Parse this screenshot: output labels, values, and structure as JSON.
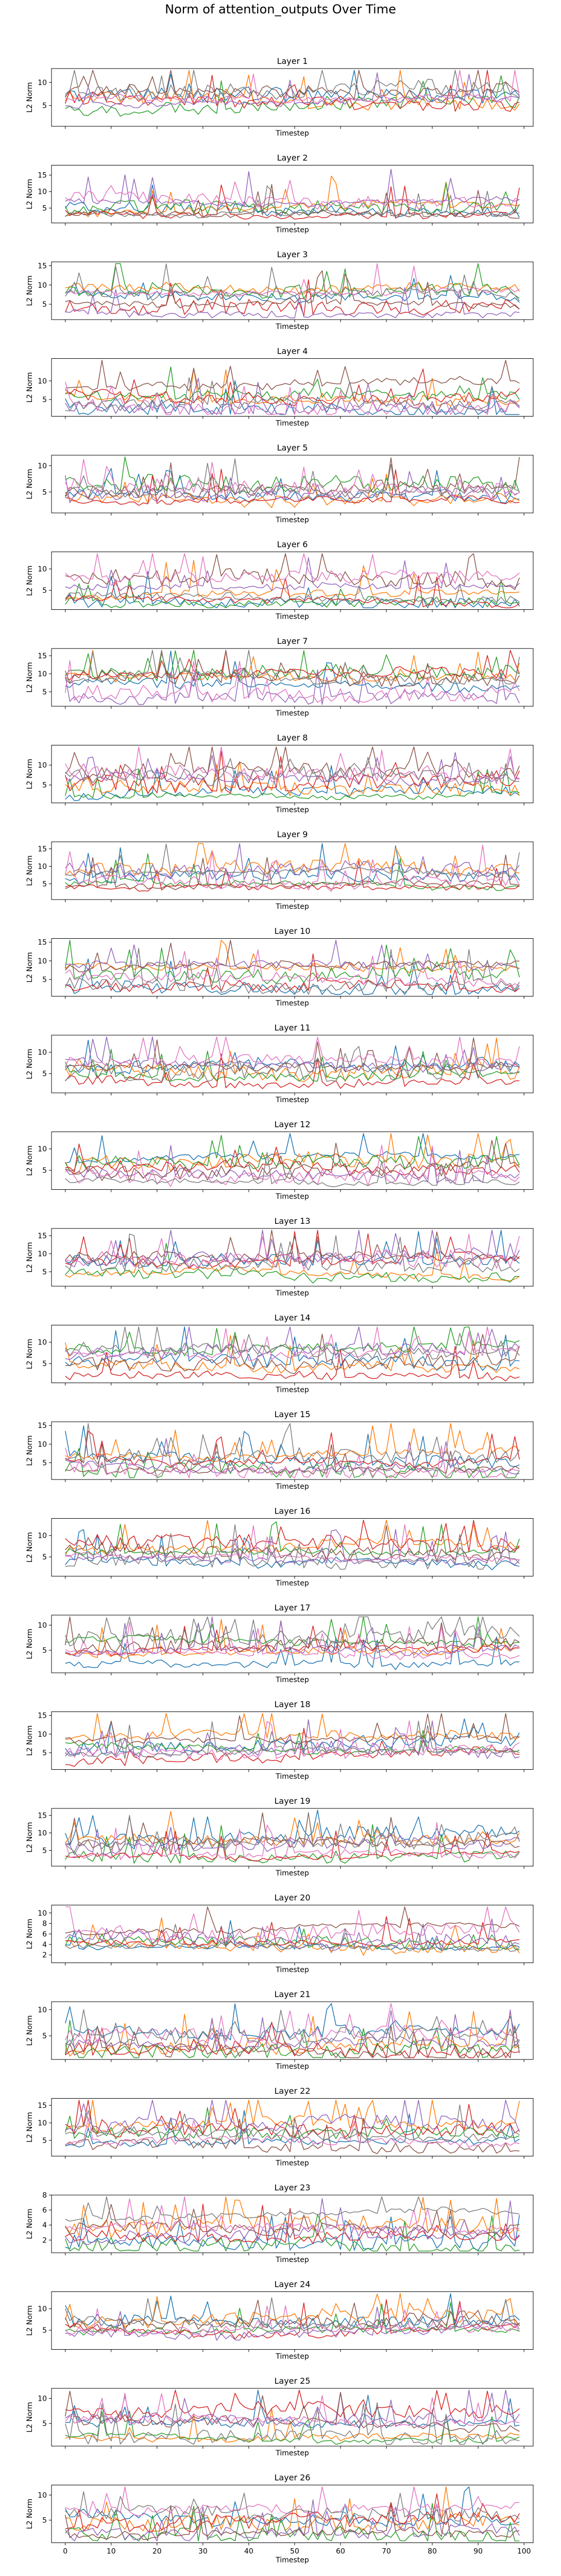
{
  "figure": {
    "suptitle": "Norm of attention_outputs Over Time"
  },
  "colors": {
    "series": [
      "#1f77b4",
      "#ff7f0e",
      "#2ca02c",
      "#d62728",
      "#9467bd",
      "#8c564b",
      "#e377c2",
      "#7f7f7f"
    ],
    "axis": "#000000",
    "background": "#ffffff"
  },
  "chart_data": [
    {
      "type": "line",
      "title": "Layer 1",
      "xlabel": "Timestep",
      "ylabel": "L2 Norm",
      "xlim": [
        -3,
        102
      ],
      "ylim": [
        0.5,
        13
      ],
      "yticks": [
        5,
        10
      ],
      "xticks": [],
      "seed": 1,
      "num_series": 8,
      "n_points": 100,
      "grid": false
    },
    {
      "type": "line",
      "title": "Layer 2",
      "xlabel": "Timestep",
      "ylabel": "L2 Norm",
      "xlim": [
        -3,
        102
      ],
      "ylim": [
        0.5,
        18
      ],
      "yticks": [
        5,
        10,
        15
      ],
      "xticks": [],
      "seed": 2,
      "num_series": 8,
      "n_points": 100,
      "grid": false
    },
    {
      "type": "line",
      "title": "Layer 3",
      "xlabel": "Timestep",
      "ylabel": "L2 Norm",
      "xlim": [
        -3,
        102
      ],
      "ylim": [
        1,
        16
      ],
      "yticks": [
        5,
        10,
        15
      ],
      "xticks": [],
      "seed": 3,
      "num_series": 8,
      "n_points": 100,
      "grid": false
    },
    {
      "type": "line",
      "title": "Layer 4",
      "xlabel": "Timestep",
      "ylabel": "L2 Norm",
      "xlim": [
        -3,
        102
      ],
      "ylim": [
        0.5,
        16
      ],
      "yticks": [
        5,
        10
      ],
      "xticks": [],
      "seed": 4,
      "num_series": 8,
      "n_points": 100,
      "grid": false
    },
    {
      "type": "line",
      "title": "Layer 5",
      "xlabel": "Timestep",
      "ylabel": "L2 Norm",
      "xlim": [
        -3,
        102
      ],
      "ylim": [
        1,
        12
      ],
      "yticks": [
        5,
        10
      ],
      "xticks": [],
      "seed": 5,
      "num_series": 8,
      "n_points": 100,
      "grid": false
    },
    {
      "type": "line",
      "title": "Layer 6",
      "xlabel": "Timestep",
      "ylabel": "L2 Norm",
      "xlim": [
        -3,
        102
      ],
      "ylim": [
        0.5,
        14
      ],
      "yticks": [
        5,
        10
      ],
      "xticks": [],
      "seed": 6,
      "num_series": 8,
      "n_points": 100,
      "grid": false
    },
    {
      "type": "line",
      "title": "Layer 7",
      "xlabel": "Timestep",
      "ylabel": "L2 Norm",
      "xlim": [
        -3,
        102
      ],
      "ylim": [
        1,
        17
      ],
      "yticks": [
        5,
        10,
        15
      ],
      "xticks": [],
      "seed": 7,
      "num_series": 8,
      "n_points": 100,
      "grid": false
    },
    {
      "type": "line",
      "title": "Layer 8",
      "xlabel": "Timestep",
      "ylabel": "L2 Norm",
      "xlim": [
        -3,
        102
      ],
      "ylim": [
        0.5,
        15
      ],
      "yticks": [
        5,
        10
      ],
      "xticks": [],
      "seed": 8,
      "num_series": 8,
      "n_points": 100,
      "grid": false
    },
    {
      "type": "line",
      "title": "Layer 9",
      "xlabel": "Timestep",
      "ylabel": "L2 Norm",
      "xlim": [
        -3,
        102
      ],
      "ylim": [
        0.5,
        17
      ],
      "yticks": [
        5,
        10,
        15
      ],
      "xticks": [],
      "seed": 9,
      "num_series": 8,
      "n_points": 100,
      "grid": false
    },
    {
      "type": "line",
      "title": "Layer 10",
      "xlabel": "Timestep",
      "ylabel": "L2 Norm",
      "xlim": [
        -3,
        102
      ],
      "ylim": [
        0.5,
        16
      ],
      "yticks": [
        5,
        10,
        15
      ],
      "xticks": [],
      "seed": 10,
      "num_series": 8,
      "n_points": 100,
      "grid": false
    },
    {
      "type": "line",
      "title": "Layer 11",
      "xlabel": "Timestep",
      "ylabel": "L2 Norm",
      "xlim": [
        -3,
        102
      ],
      "ylim": [
        0.5,
        14
      ],
      "yticks": [
        5,
        10
      ],
      "xticks": [],
      "seed": 11,
      "num_series": 8,
      "n_points": 100,
      "grid": false
    },
    {
      "type": "line",
      "title": "Layer 12",
      "xlabel": "Timestep",
      "ylabel": "L2 Norm",
      "xlim": [
        -3,
        102
      ],
      "ylim": [
        0.5,
        14
      ],
      "yticks": [
        5,
        10
      ],
      "xticks": [],
      "seed": 12,
      "num_series": 8,
      "n_points": 100,
      "grid": false
    },
    {
      "type": "line",
      "title": "Layer 13",
      "xlabel": "Timestep",
      "ylabel": "L2 Norm",
      "xlim": [
        -3,
        102
      ],
      "ylim": [
        1,
        17
      ],
      "yticks": [
        5,
        10,
        15
      ],
      "xticks": [],
      "seed": 13,
      "num_series": 8,
      "n_points": 100,
      "grid": false
    },
    {
      "type": "line",
      "title": "Layer 14",
      "xlabel": "Timestep",
      "ylabel": "L2 Norm",
      "xlim": [
        -3,
        102
      ],
      "ylim": [
        0.5,
        14
      ],
      "yticks": [
        5,
        10
      ],
      "xticks": [],
      "seed": 14,
      "num_series": 8,
      "n_points": 100,
      "grid": false
    },
    {
      "type": "line",
      "title": "Layer 15",
      "xlabel": "Timestep",
      "ylabel": "L2 Norm",
      "xlim": [
        -3,
        102
      ],
      "ylim": [
        0.5,
        16
      ],
      "yticks": [
        5,
        10,
        15
      ],
      "xticks": [],
      "seed": 15,
      "num_series": 8,
      "n_points": 100,
      "grid": false
    },
    {
      "type": "line",
      "title": "Layer 16",
      "xlabel": "Timestep",
      "ylabel": "L2 Norm",
      "xlim": [
        -3,
        102
      ],
      "ylim": [
        0.5,
        14
      ],
      "yticks": [
        5,
        10
      ],
      "xticks": [],
      "seed": 16,
      "num_series": 8,
      "n_points": 100,
      "grid": false
    },
    {
      "type": "line",
      "title": "Layer 17",
      "xlabel": "Timestep",
      "ylabel": "L2 Norm",
      "xlim": [
        -3,
        102
      ],
      "ylim": [
        0.5,
        12
      ],
      "yticks": [
        5,
        10
      ],
      "xticks": [],
      "seed": 17,
      "num_series": 8,
      "n_points": 100,
      "grid": false
    },
    {
      "type": "line",
      "title": "Layer 18",
      "xlabel": "Timestep",
      "ylabel": "L2 Norm",
      "xlim": [
        -3,
        102
      ],
      "ylim": [
        0.5,
        16
      ],
      "yticks": [
        5,
        10,
        15
      ],
      "xticks": [],
      "seed": 18,
      "num_series": 8,
      "n_points": 100,
      "grid": false
    },
    {
      "type": "line",
      "title": "Layer 19",
      "xlabel": "Timestep",
      "ylabel": "L2 Norm",
      "xlim": [
        -3,
        102
      ],
      "ylim": [
        0.5,
        17
      ],
      "yticks": [
        5,
        10,
        15
      ],
      "xticks": [],
      "seed": 19,
      "num_series": 8,
      "n_points": 100,
      "grid": false
    },
    {
      "type": "line",
      "title": "Layer 20",
      "xlabel": "Timestep",
      "ylabel": "L2 Norm",
      "xlim": [
        -3,
        102
      ],
      "ylim": [
        0.5,
        11.5
      ],
      "yticks": [
        2,
        4,
        6,
        8,
        10
      ],
      "xticks": [],
      "seed": 20,
      "num_series": 8,
      "n_points": 100,
      "grid": false
    },
    {
      "type": "line",
      "title": "Layer 21",
      "xlabel": "Timestep",
      "ylabel": "L2 Norm",
      "xlim": [
        -3,
        102
      ],
      "ylim": [
        0.5,
        11.5
      ],
      "yticks": [
        5,
        10
      ],
      "xticks": [],
      "seed": 21,
      "num_series": 8,
      "n_points": 100,
      "grid": false
    },
    {
      "type": "line",
      "title": "Layer 22",
      "xlabel": "Timestep",
      "ylabel": "L2 Norm",
      "xlim": [
        -3,
        102
      ],
      "ylim": [
        0.5,
        17
      ],
      "yticks": [
        5,
        10,
        15
      ],
      "xticks": [],
      "seed": 22,
      "num_series": 8,
      "n_points": 100,
      "grid": false
    },
    {
      "type": "line",
      "title": "Layer 23",
      "xlabel": "Timestep",
      "ylabel": "L2 Norm",
      "xlim": [
        -3,
        102
      ],
      "ylim": [
        0.3,
        8
      ],
      "yticks": [
        2,
        4,
        6,
        8
      ],
      "xticks": [],
      "seed": 23,
      "num_series": 8,
      "n_points": 100,
      "grid": false
    },
    {
      "type": "line",
      "title": "Layer 24",
      "xlabel": "Timestep",
      "ylabel": "L2 Norm",
      "xlim": [
        -3,
        102
      ],
      "ylim": [
        0.5,
        14
      ],
      "yticks": [
        5,
        10
      ],
      "xticks": [],
      "seed": 24,
      "num_series": 8,
      "n_points": 100,
      "grid": false
    },
    {
      "type": "line",
      "title": "Layer 25",
      "xlabel": "Timestep",
      "ylabel": "L2 Norm",
      "xlim": [
        -3,
        102
      ],
      "ylim": [
        0.5,
        12
      ],
      "yticks": [
        5,
        10
      ],
      "xticks": [],
      "seed": 25,
      "num_series": 8,
      "n_points": 100,
      "grid": false
    },
    {
      "type": "line",
      "title": "Layer 26",
      "xlabel": "Timestep",
      "ylabel": "L2 Norm",
      "xlim": [
        -3,
        102
      ],
      "ylim": [
        0.5,
        12
      ],
      "yticks": [
        5,
        10
      ],
      "xticks": [
        0,
        10,
        20,
        30,
        40,
        50,
        60,
        70,
        80,
        90,
        100
      ],
      "seed": 26,
      "num_series": 8,
      "n_points": 100,
      "grid": false
    }
  ]
}
